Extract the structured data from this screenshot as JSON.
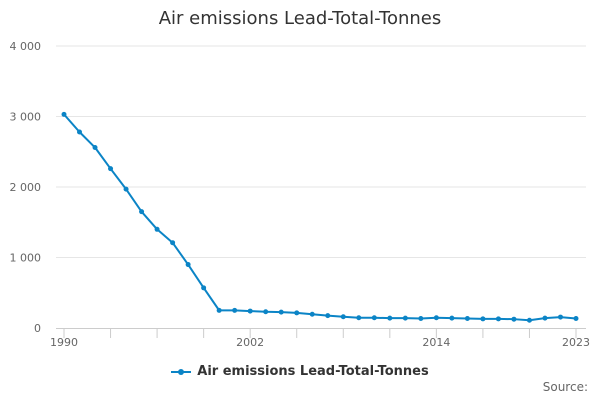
{
  "chart_data": {
    "type": "line",
    "title": "Air emissions Lead-Total-Tonnes",
    "xlabel": "",
    "ylabel": "",
    "x": [
      1990,
      1991,
      1992,
      1993,
      1994,
      1995,
      1996,
      1997,
      1998,
      1999,
      2000,
      2001,
      2002,
      2003,
      2004,
      2005,
      2006,
      2007,
      2008,
      2009,
      2010,
      2011,
      2012,
      2013,
      2014,
      2015,
      2016,
      2017,
      2018,
      2019,
      2020,
      2021,
      2022,
      2023
    ],
    "xlim": [
      1990,
      2023
    ],
    "x_tick_labels": [
      "1990",
      "2002",
      "2014",
      "2023"
    ],
    "ylim": [
      0,
      4000
    ],
    "y_ticks": [
      0,
      1000,
      2000,
      3000,
      4000
    ],
    "y_tick_labels": [
      "0",
      "1 000",
      "2 000",
      "3 000",
      "4 000"
    ],
    "series": [
      {
        "name": "Air emissions Lead-Total-Tonnes",
        "color": "#0b84c6",
        "values": [
          3030,
          2780,
          2560,
          2260,
          1970,
          1650,
          1400,
          1210,
          900,
          570,
          250,
          250,
          240,
          230,
          225,
          215,
          195,
          175,
          160,
          145,
          145,
          140,
          140,
          135,
          145,
          140,
          135,
          130,
          130,
          125,
          110,
          140,
          155,
          135
        ]
      }
    ],
    "legend": "bottom-center",
    "grid": true
  },
  "footer": {
    "source_label": "Source:"
  }
}
